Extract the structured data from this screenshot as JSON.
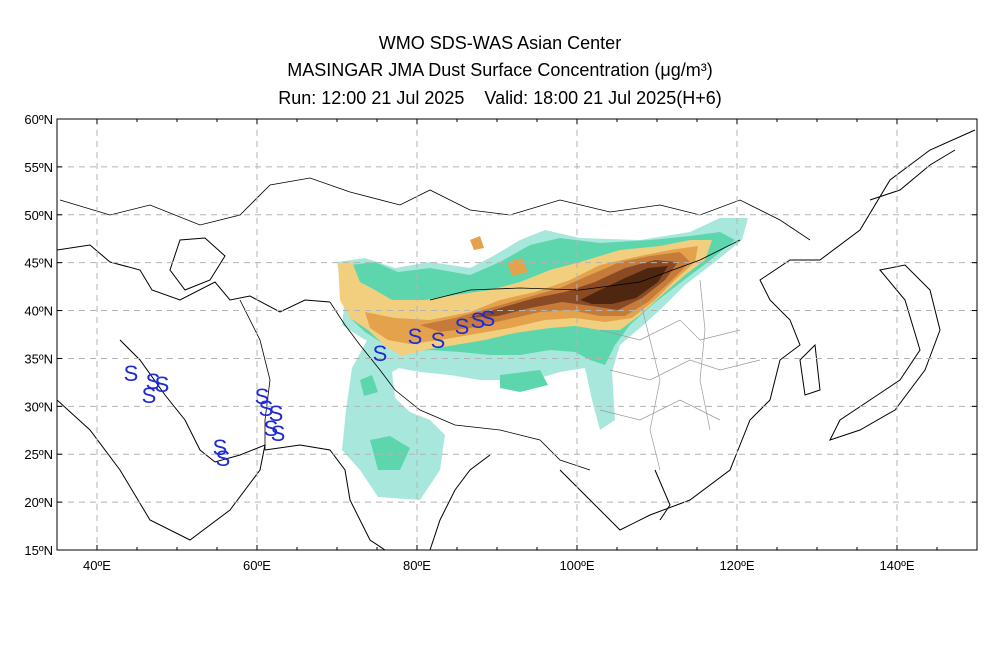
{
  "header": {
    "line1": "WMO SDS-WAS Asian Center",
    "line2": "MASINGAR JMA Dust Surface Concentration (μg/m³)",
    "line3": "Run: 12:00 21 Jul 2025    Valid: 18:00 21 Jul 2025(H+6)"
  },
  "map": {
    "lon_range": [
      35,
      150
    ],
    "lat_range": [
      15,
      60
    ],
    "lat_ticks": [
      "60ºN",
      "55ºN",
      "50ºN",
      "45ºN",
      "40ºN",
      "35ºN",
      "30ºN",
      "25ºN",
      "20ºN",
      "15ºN"
    ],
    "lon_ticks": [
      "40ºE",
      "60ºE",
      "80ºE",
      "100ºE",
      "120ºE",
      "140ºE"
    ],
    "grid": true,
    "colors": {
      "level1": "#a8e8dc",
      "level2": "#5dd6ae",
      "level3": "#f1cf7f",
      "level4": "#e5a24d",
      "level5": "#c67b3a",
      "level6": "#8a4a23",
      "level7": "#4f2610",
      "dust_marker": "#1f2bd6"
    },
    "dust_marker_symbol": "S"
  }
}
